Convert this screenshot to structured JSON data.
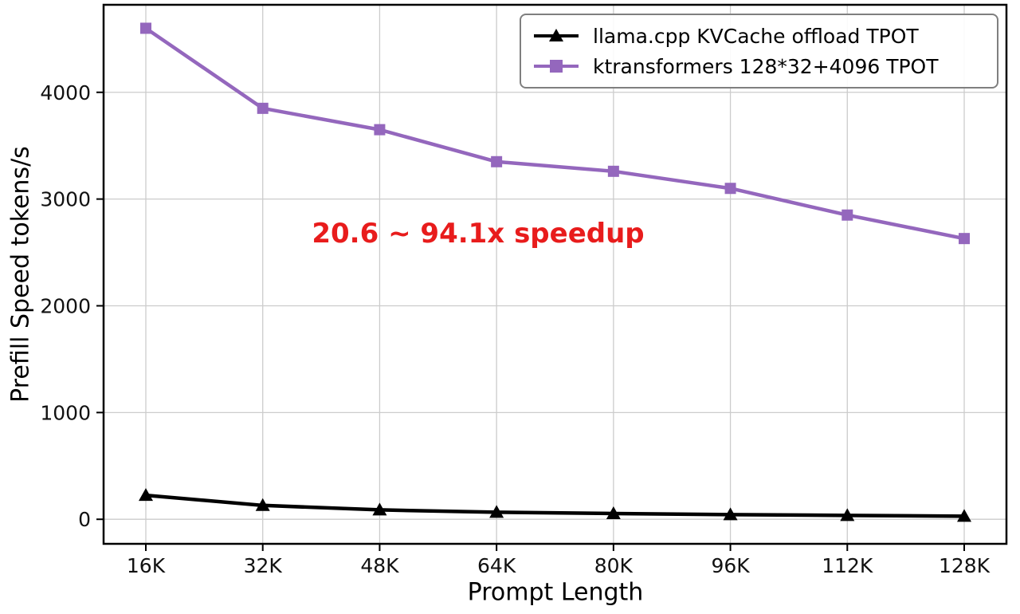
{
  "chart_data": {
    "type": "line",
    "categories": [
      "16K",
      "32K",
      "48K",
      "64K",
      "80K",
      "96K",
      "112K",
      "128K"
    ],
    "series": [
      {
        "name": "llama.cpp KVCache offload TPOT",
        "color": "#000000",
        "marker": "triangle",
        "values": [
          225,
          130,
          88,
          66,
          54,
          44,
          36,
          29
        ]
      },
      {
        "name": "ktransformers 128*32+4096 TPOT",
        "color": "#9467bd",
        "marker": "square",
        "values": [
          4600,
          3850,
          3650,
          3350,
          3260,
          3100,
          2850,
          2630
        ]
      }
    ],
    "title": "",
    "xlabel": "Prompt Length",
    "ylabel": "Prefill Speed tokens/s",
    "yticks": [
      0,
      1000,
      2000,
      3000,
      4000
    ],
    "ylim": [
      -230,
      4820
    ],
    "grid": true,
    "legend_position": "upper right",
    "annotation": {
      "text": "20.6 ~ 94.1x speedup",
      "color": "#e81c1c"
    }
  }
}
